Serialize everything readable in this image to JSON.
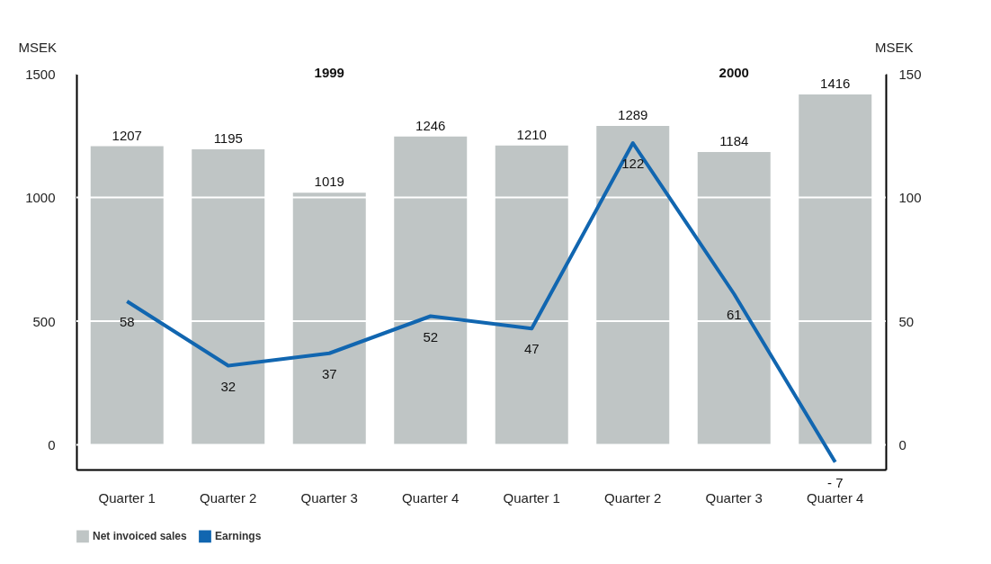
{
  "chart_data": {
    "type": "bar",
    "categories": [
      "Quarter 1",
      "Quarter 2",
      "Quarter 3",
      "Quarter 4",
      "Quarter 1",
      "Quarter 2",
      "Quarter 3",
      "Quarter 4"
    ],
    "ylabel": "MSEK",
    "y2label": "MSEK",
    "annotations": [
      "1999",
      "2000"
    ],
    "series": [
      {
        "name": "Net invoiced sales",
        "color": "#bfc5c5",
        "values": [
          1207,
          1195,
          1019,
          1246,
          1210,
          1289,
          1184,
          1416
        ]
      },
      {
        "name": "Earnings",
        "type": "line",
        "axis": "y2",
        "color": "#1166b0",
        "values": [
          58,
          32,
          37,
          52,
          47,
          122,
          61,
          -7
        ],
        "value_labels": [
          "58",
          "32",
          "37",
          "52",
          "47",
          "122",
          "61",
          "- 7"
        ]
      }
    ],
    "ylim": [
      -100,
      1500
    ],
    "yticks": [
      0,
      500,
      1000,
      1500
    ],
    "y2lim": [
      -10,
      150
    ],
    "y2ticks": [
      0,
      50,
      100,
      150
    ],
    "grid": "y",
    "data_labels": true,
    "legend": "bottom"
  }
}
